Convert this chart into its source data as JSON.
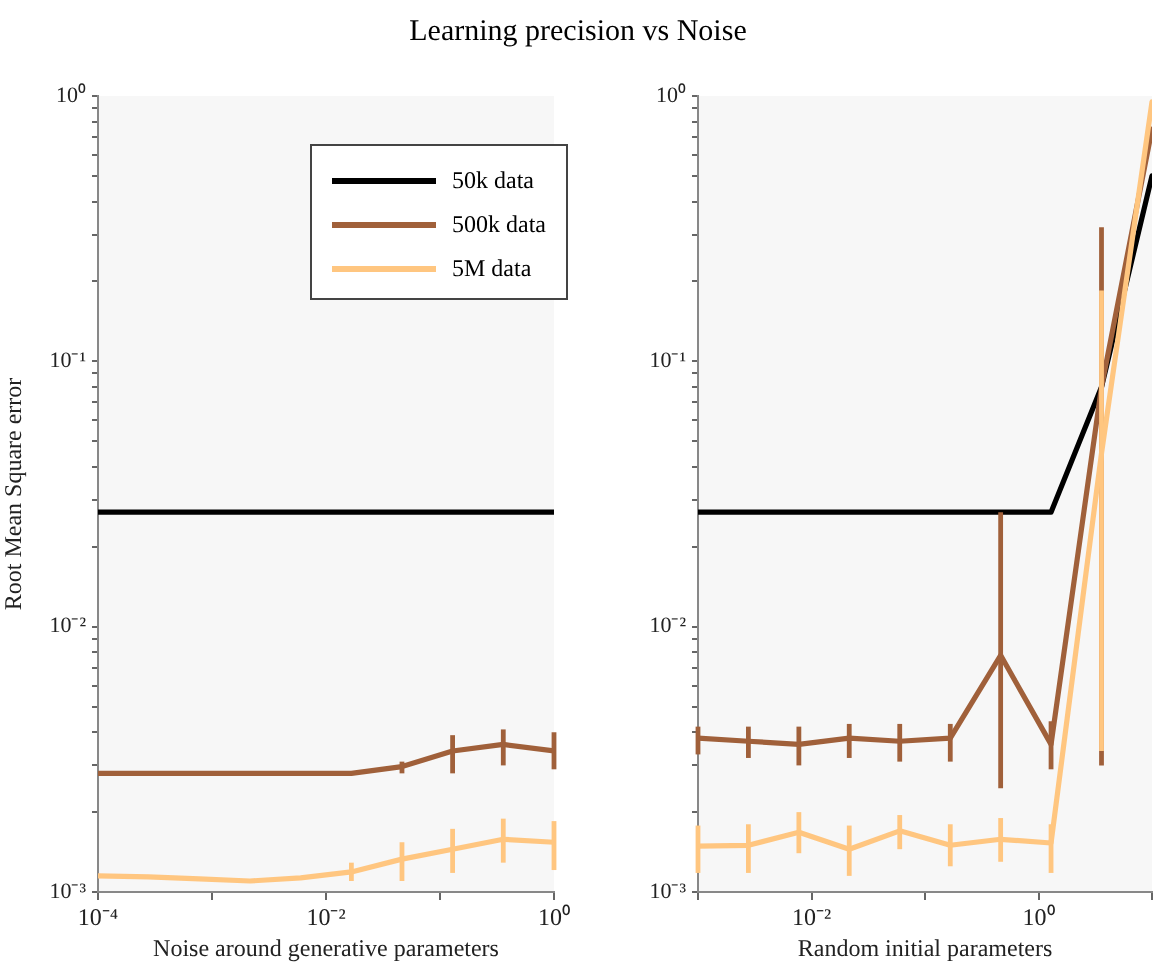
{
  "chart_data": [
    {
      "type": "line",
      "title": "Learning precision vs Noise",
      "xlabel": "Noise around generative parameters",
      "ylabel": "Root Mean Square error",
      "x": [
        0.0001,
        0.000278,
        0.000774,
        0.00215,
        0.00599,
        0.0167,
        0.0464,
        0.129,
        0.359,
        1
      ],
      "series": [
        {
          "name": "50k data",
          "color": "#000000",
          "values": [
            0.027,
            0.027,
            0.027,
            0.027,
            0.027,
            0.027,
            0.027,
            0.027,
            0.027,
            0.027
          ]
        },
        {
          "name": "500k data",
          "color": "#a0603a",
          "values": [
            0.0028,
            0.0028,
            0.0028,
            0.0028,
            0.0028,
            0.0028,
            0.00297,
            0.0034,
            0.0036,
            0.0034
          ],
          "errors": [
            null,
            null,
            null,
            null,
            null,
            null,
            [
              0.0028,
              0.0031
            ],
            [
              0.0028,
              0.0039
            ],
            [
              0.003,
              0.0041
            ],
            [
              0.0029,
              0.004
            ]
          ]
        },
        {
          "name": "5M data",
          "color": "#ffc680",
          "values": [
            0.00115,
            0.00114,
            0.00112,
            0.0011,
            0.00113,
            0.00119,
            0.00133,
            0.00145,
            0.00158,
            0.00154
          ],
          "errors": [
            null,
            null,
            null,
            null,
            null,
            [
              0.0011,
              0.00129
            ],
            [
              0.0011,
              0.00154
            ],
            [
              0.00118,
              0.00173
            ],
            [
              0.00129,
              0.00189
            ],
            [
              0.00121,
              0.00185
            ]
          ]
        }
      ],
      "log": "xy",
      "legend": "top right",
      "marker": "none",
      "line_style": "solid",
      "xlim": [
        0.0001,
        1
      ],
      "xticks": [
        {
          "value": 0.0001,
          "label": "10⁻⁴"
        },
        {
          "value": 0.001,
          "label": null
        },
        {
          "value": 0.01,
          "label": "10⁻²"
        },
        {
          "value": 0.1,
          "label": null
        },
        {
          "value": 1,
          "label": "10⁰"
        }
      ],
      "ylim": [
        0.001,
        1
      ],
      "yticks": [
        {
          "value": 0.001,
          "label": "10⁻³"
        },
        {
          "value": 0.002,
          "label": null
        },
        {
          "value": 0.003,
          "label": null
        },
        {
          "value": 0.004,
          "label": null
        },
        {
          "value": 0.005,
          "label": null
        },
        {
          "value": 0.006,
          "label": null
        },
        {
          "value": 0.007,
          "label": null
        },
        {
          "value": 0.008,
          "label": null
        },
        {
          "value": 0.009,
          "label": null
        },
        {
          "value": 0.01,
          "label": "10⁻²"
        },
        {
          "value": 0.02,
          "label": null
        },
        {
          "value": 0.03,
          "label": null
        },
        {
          "value": 0.04,
          "label": null
        },
        {
          "value": 0.05,
          "label": null
        },
        {
          "value": 0.06,
          "label": null
        },
        {
          "value": 0.07,
          "label": null
        },
        {
          "value": 0.08,
          "label": null
        },
        {
          "value": 0.09,
          "label": null
        },
        {
          "value": 0.1,
          "label": "10⁻¹"
        },
        {
          "value": 0.2,
          "label": null
        },
        {
          "value": 0.3,
          "label": null
        },
        {
          "value": 0.4,
          "label": null
        },
        {
          "value": 0.5,
          "label": null
        },
        {
          "value": 0.6,
          "label": null
        },
        {
          "value": 0.7,
          "label": null
        },
        {
          "value": 0.8,
          "label": null
        },
        {
          "value": 0.9,
          "label": null
        },
        {
          "value": 1,
          "label": "10⁰"
        }
      ]
    },
    {
      "type": "line",
      "xlabel": "Random initial parameters",
      "x": [
        0.001,
        0.00278,
        0.00774,
        0.0215,
        0.0599,
        0.167,
        0.464,
        1.29,
        3.59,
        10
      ],
      "series": [
        {
          "color": "#000000",
          "values": [
            0.027,
            0.027,
            0.027,
            0.027,
            0.027,
            0.027,
            0.027,
            0.027,
            0.08,
            0.5
          ]
        },
        {
          "color": "#a0603a",
          "values": [
            0.0038,
            0.0037,
            0.0036,
            0.0038,
            0.0037,
            0.0038,
            0.0078,
            0.0036,
            0.08,
            0.75
          ],
          "errors": [
            [
              0.0033,
              0.0042
            ],
            [
              0.0032,
              0.0042
            ],
            [
              0.003,
              0.0042
            ],
            [
              0.0032,
              0.0043
            ],
            [
              0.0031,
              0.0043
            ],
            [
              0.0031,
              0.0043
            ],
            [
              0.00246,
              0.027
            ],
            [
              0.0029,
              0.0044
            ],
            [
              0.003,
              0.32
            ],
            null
          ]
        },
        {
          "color": "#ffc680",
          "values": [
            0.00149,
            0.0015,
            0.00168,
            0.00145,
            0.0017,
            0.0015,
            0.00158,
            0.00153,
            0.045,
            0.95
          ],
          "errors": [
            [
              0.00118,
              0.00178
            ],
            [
              0.00118,
              0.0018
            ],
            [
              0.0014,
              0.002
            ],
            [
              0.00115,
              0.00178
            ],
            [
              0.00145,
              0.00195
            ],
            [
              0.00125,
              0.0018
            ],
            [
              0.0013,
              0.0019
            ],
            [
              0.00118,
              0.0018
            ],
            [
              0.0034,
              0.185
            ],
            null
          ]
        }
      ],
      "log": "xy",
      "marker": "none",
      "line_style": "solid",
      "xlim": [
        0.001,
        10
      ],
      "xticks": [
        {
          "value": 0.001,
          "label": null
        },
        {
          "value": 0.01,
          "label": "10⁻²"
        },
        {
          "value": 0.1,
          "label": null
        },
        {
          "value": 1,
          "label": "10⁰"
        },
        {
          "value": 10,
          "label": null
        }
      ],
      "ylim": [
        0.001,
        1
      ],
      "yticks": [
        {
          "value": 0.001,
          "label": "10⁻³"
        },
        {
          "value": 0.002,
          "label": null
        },
        {
          "value": 0.003,
          "label": null
        },
        {
          "value": 0.004,
          "label": null
        },
        {
          "value": 0.005,
          "label": null
        },
        {
          "value": 0.006,
          "label": null
        },
        {
          "value": 0.007,
          "label": null
        },
        {
          "value": 0.008,
          "label": null
        },
        {
          "value": 0.009,
          "label": null
        },
        {
          "value": 0.01,
          "label": "10⁻²"
        },
        {
          "value": 0.02,
          "label": null
        },
        {
          "value": 0.03,
          "label": null
        },
        {
          "value": 0.04,
          "label": null
        },
        {
          "value": 0.05,
          "label": null
        },
        {
          "value": 0.06,
          "label": null
        },
        {
          "value": 0.07,
          "label": null
        },
        {
          "value": 0.08,
          "label": null
        },
        {
          "value": 0.09,
          "label": null
        },
        {
          "value": 0.1,
          "label": "10⁻¹"
        },
        {
          "value": 0.2,
          "label": null
        },
        {
          "value": 0.3,
          "label": null
        },
        {
          "value": 0.4,
          "label": null
        },
        {
          "value": 0.5,
          "label": null
        },
        {
          "value": 0.6,
          "label": null
        },
        {
          "value": 0.7,
          "label": null
        },
        {
          "value": 0.8,
          "label": null
        },
        {
          "value": 0.9,
          "label": null
        },
        {
          "value": 1,
          "label": "10⁰"
        }
      ]
    }
  ]
}
